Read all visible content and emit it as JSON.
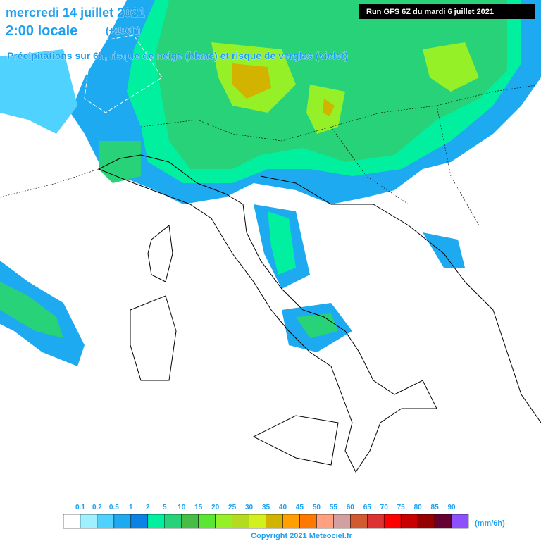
{
  "header": {
    "date": "mercredi 14 juillet 2021",
    "time": "2:00 locale",
    "lead": "(+186h)",
    "description": "Précipitations sur 6h, risque de neige (blanc) et risque de verglas (violet)",
    "run": "Run GFS 6Z du mardi 6 juillet 2021"
  },
  "legend": {
    "labels": [
      "0.1",
      "0.2",
      "0.5",
      "1",
      "2",
      "5",
      "10",
      "15",
      "20",
      "25",
      "30",
      "35",
      "40",
      "45",
      "50",
      "55",
      "60",
      "65",
      "70",
      "75",
      "80",
      "85",
      "90"
    ],
    "colors": [
      "#ffffff",
      "#a0f0ff",
      "#50d2ff",
      "#1eaaf0",
      "#0a82e6",
      "#00f0a0",
      "#28d278",
      "#46be46",
      "#5ae632",
      "#96f028",
      "#b4dc1e",
      "#d2f01e",
      "#d2b400",
      "#ffa000",
      "#ff7800",
      "#ffa080",
      "#d2a0a0",
      "#d25a32",
      "#dc3232",
      "#ff0000",
      "#c80000",
      "#960000",
      "#640032",
      "#8c50ff",
      "#ff50ff"
    ],
    "unit": "(mm/6h)"
  },
  "footer": {
    "copyright": "Copyright 2021 Meteociel.fr"
  }
}
